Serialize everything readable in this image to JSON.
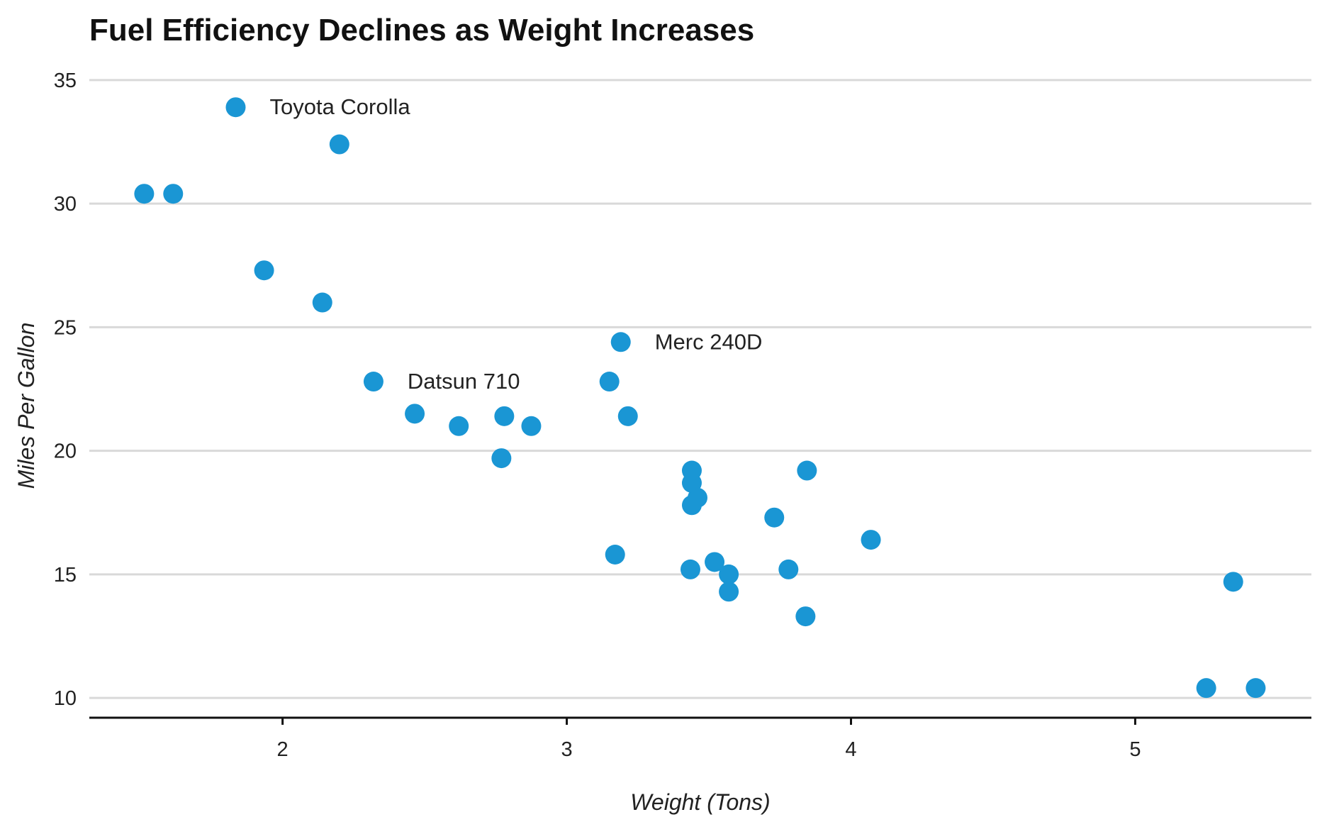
{
  "chart_data": {
    "type": "scatter",
    "title": "Fuel Efficiency Declines as Weight Increases",
    "xlabel": "Weight (Tons)",
    "ylabel": "Miles Per Gallon",
    "xlim": [
      1.32,
      5.62
    ],
    "ylim": [
      9.2,
      35.6
    ],
    "xticks": [
      2,
      3,
      4,
      5
    ],
    "yticks": [
      10,
      15,
      20,
      25,
      30,
      35
    ],
    "grid": "horizontal",
    "point_color": "#1a96d4",
    "points": [
      {
        "x": 2.62,
        "y": 21.0
      },
      {
        "x": 2.875,
        "y": 21.0
      },
      {
        "x": 2.32,
        "y": 22.8,
        "label": "Datsun 710"
      },
      {
        "x": 3.215,
        "y": 21.4
      },
      {
        "x": 3.44,
        "y": 18.7
      },
      {
        "x": 3.46,
        "y": 18.1
      },
      {
        "x": 3.57,
        "y": 14.3
      },
      {
        "x": 3.19,
        "y": 24.4,
        "label": "Merc 240D"
      },
      {
        "x": 3.15,
        "y": 22.8
      },
      {
        "x": 3.44,
        "y": 19.2
      },
      {
        "x": 3.44,
        "y": 17.8
      },
      {
        "x": 4.07,
        "y": 16.4
      },
      {
        "x": 3.73,
        "y": 17.3
      },
      {
        "x": 3.78,
        "y": 15.2
      },
      {
        "x": 5.25,
        "y": 10.4
      },
      {
        "x": 5.424,
        "y": 10.4
      },
      {
        "x": 5.345,
        "y": 14.7
      },
      {
        "x": 2.2,
        "y": 32.4
      },
      {
        "x": 1.615,
        "y": 30.4
      },
      {
        "x": 1.835,
        "y": 33.9,
        "label": "Toyota Corolla"
      },
      {
        "x": 2.465,
        "y": 21.5
      },
      {
        "x": 3.52,
        "y": 15.5
      },
      {
        "x": 3.435,
        "y": 15.2
      },
      {
        "x": 3.84,
        "y": 13.3
      },
      {
        "x": 3.845,
        "y": 19.2
      },
      {
        "x": 1.935,
        "y": 27.3
      },
      {
        "x": 2.14,
        "y": 26.0
      },
      {
        "x": 1.513,
        "y": 30.4
      },
      {
        "x": 3.17,
        "y": 15.8
      },
      {
        "x": 2.77,
        "y": 19.7
      },
      {
        "x": 3.57,
        "y": 15.0
      },
      {
        "x": 2.78,
        "y": 21.4
      }
    ]
  }
}
